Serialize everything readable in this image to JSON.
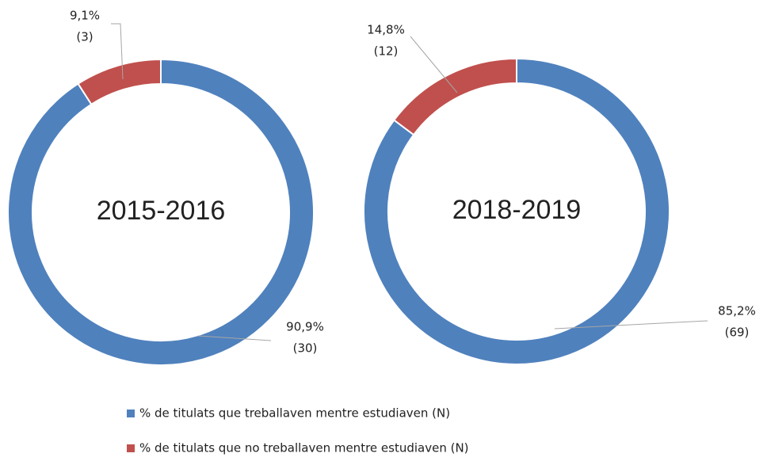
{
  "legend": [
    {
      "name": "% de titulats que treballaven mentre estudiaven (N)",
      "color": "#4f81bd"
    },
    {
      "name": "% de titulats que no treballaven mentre estudiaven (N)",
      "color": "#c0504d"
    }
  ],
  "chart_data": [
    {
      "type": "donut",
      "title": "2015-2016",
      "values": [
        90.9,
        9.1
      ],
      "value_labels": [
        "90,9%",
        "9,1%"
      ],
      "count_labels": [
        "(30)",
        "(3)"
      ]
    },
    {
      "type": "donut",
      "title": "2018-2019",
      "values": [
        85.2,
        14.8
      ],
      "value_labels": [
        "85,2%",
        "14,8%"
      ],
      "count_labels": [
        "(69)",
        "(12)"
      ]
    }
  ]
}
